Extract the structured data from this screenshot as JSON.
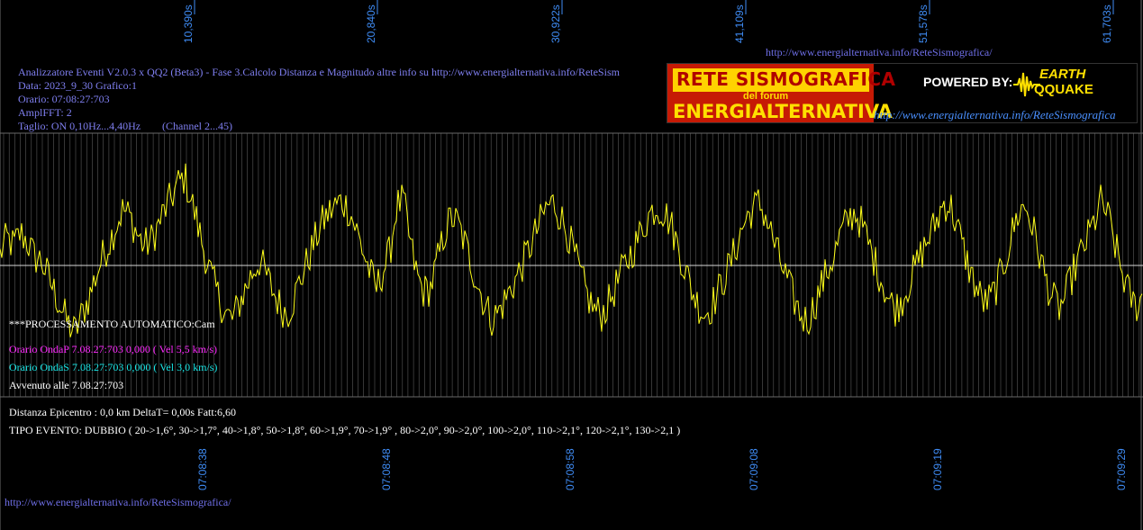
{
  "header": {
    "top_url": "http://www.energialternativa.info/ReteSismografica/",
    "title": "Analizzatore Eventi V2.0.3 x QQ2 (Beta3) - Fase 3.Calcolo Distanza e Magnitudo altre info su http://www.energialternativa.info/ReteSism",
    "data": "Data: 2023_9_30 Grafico:1",
    "orario": "Orario: 07:08:27:703",
    "ampl": "AmplFFT: 2",
    "taglio": "Taglio: ON 0,10Hz...4,40Hz",
    "channel": "(Channel 2...45)"
  },
  "logo": {
    "line1": "RETE SISMOGRAFICA",
    "line2": "del forum",
    "line3": "ENERGIALTERNATIVA",
    "powered": "POWERED BY:",
    "brand1": "EARTH",
    "brand2": "QQUAKE",
    "url": "http://www.energialternativa.info/ReteSismografica"
  },
  "analysis": {
    "processing": "***PROCESSAMENTO AUTOMATICO:Cam",
    "onda_p": "Orario OndaP 7.08.27:703  0,000 ( Vel 5,5 km/s)",
    "onda_s": "Orario OndaS 7.08.27:703  0,000 ( Vel 3,0 km/s)",
    "avvenuto": "Avvenuto alle 7.08.27:703",
    "distanza": "Distanza Epicentro : 0,0 km DeltaT= 0,00s  Fatt:6,60",
    "tipo": "TIPO EVENTO: DUBBIO ( 20->1,6°, 30->1,7°, 40->1,8°, 50->1,8°, 60->1,9°, 70->1,9° , 80->2,0°, 90->2,0°, 100->2,0°, 110->2,1°, 120->2,1°, 130->2,1 )"
  },
  "footer": {
    "url": "http://www.energialternativa.info/ReteSismografica/"
  },
  "colors": {
    "trace": "#ffff1a",
    "grid": "#5a5a5a",
    "axis_labels": "#3f8cf5",
    "background": "#000000"
  },
  "chart_data": {
    "type": "line",
    "title": "",
    "xlabel": "",
    "ylabel": "",
    "top_ticks": [
      "10,390s",
      "20,840s",
      "30,922s",
      "41,109s",
      "51,578s",
      "61,703s"
    ],
    "bottom_ticks": [
      "07:08:38",
      "07:08:48",
      "07:08:58",
      "07:09:08",
      "07:09:19",
      "07:09:29"
    ],
    "x_range_s": [
      0,
      64.5
    ],
    "y_range": [
      -1,
      1
    ],
    "grid": true,
    "series": [
      {
        "values": [
          0.1,
          0.25,
          0.18,
          0.3,
          0.22,
          0.08,
          0.05,
          -0.1,
          -0.25,
          -0.4,
          -0.55,
          -0.62,
          -0.45,
          -0.3,
          -0.1,
          0.08,
          0.22,
          0.38,
          0.52,
          0.45,
          0.3,
          0.18,
          0.22,
          0.35,
          0.5,
          0.62,
          0.75,
          0.82,
          0.6,
          0.35,
          0.1,
          -0.12,
          -0.3,
          -0.45,
          -0.5,
          -0.35,
          -0.2,
          -0.05,
          0.05,
          -0.1,
          -0.25,
          -0.38,
          -0.45,
          -0.3,
          -0.12,
          0.05,
          0.22,
          0.38,
          0.48,
          0.55,
          0.6,
          0.52,
          0.35,
          0.15,
          -0.05,
          -0.22,
          -0.05,
          0.12,
          0.55,
          0.6,
          0.2,
          -0.1,
          -0.25,
          -0.2,
          0.05,
          0.3,
          0.45,
          0.38,
          0.2,
          0.0,
          -0.2,
          -0.38,
          -0.5,
          -0.42,
          -0.3,
          -0.18,
          -0.05,
          0.1,
          0.25,
          0.4,
          0.55,
          0.58,
          0.45,
          0.3,
          0.1,
          -0.12,
          -0.3,
          -0.42,
          -0.45,
          -0.35,
          -0.2,
          -0.05,
          0.08,
          0.2,
          0.35,
          0.48,
          0.55,
          0.5,
          0.4,
          0.2,
          0.0,
          -0.2,
          -0.35,
          -0.45,
          -0.38,
          -0.25,
          -0.1,
          0.05,
          0.25,
          0.42,
          0.52,
          0.58,
          0.45,
          0.25,
          0.05,
          -0.12,
          -0.3,
          -0.45,
          -0.52,
          -0.38,
          -0.2,
          -0.05,
          0.1,
          0.3,
          0.42,
          0.5,
          0.38,
          0.2,
          0.02,
          -0.15,
          -0.32,
          -0.4,
          -0.3,
          -0.15,
          0.0,
          0.15,
          0.28,
          0.42,
          0.58,
          0.55,
          0.35,
          0.12,
          -0.08,
          -0.25,
          -0.35,
          -0.3,
          -0.15,
          0.05,
          0.3,
          0.5,
          0.55,
          0.35,
          0.1,
          -0.15,
          -0.32,
          -0.4,
          -0.25,
          -0.05,
          0.1,
          0.25,
          0.4,
          0.6,
          0.45,
          0.2,
          -0.05,
          -0.25,
          -0.38,
          -0.3
        ]
      }
    ]
  }
}
